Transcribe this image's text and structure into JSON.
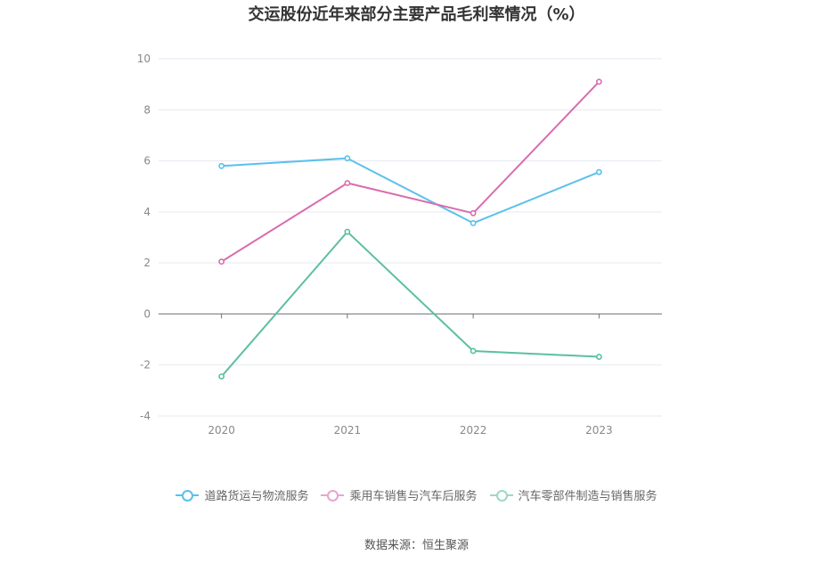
{
  "chart_data": {
    "type": "line",
    "title": "交运股份近年来部分主要产品毛利率情况（%）",
    "categories": [
      "2020",
      "2021",
      "2022",
      "2023"
    ],
    "ylim": [
      -4,
      10
    ],
    "yticks": [
      -4,
      -2,
      0,
      2,
      4,
      6,
      8,
      10
    ],
    "grid": true,
    "legend_position": "bottom",
    "series": [
      {
        "name": "道路货运与物流服务",
        "color": "#5bc0eb",
        "values": [
          5.8,
          6.1,
          3.56,
          5.56
        ]
      },
      {
        "name": "乘用车销售与汽车后服务",
        "color": "#d96caf",
        "values": [
          2.05,
          5.13,
          3.95,
          9.1
        ]
      },
      {
        "name": "汽车零部件制造与销售服务",
        "color": "#5cbfa2",
        "values": [
          -2.45,
          3.22,
          -1.45,
          -1.68
        ]
      }
    ]
  },
  "source": "数据来源：恒生聚源"
}
